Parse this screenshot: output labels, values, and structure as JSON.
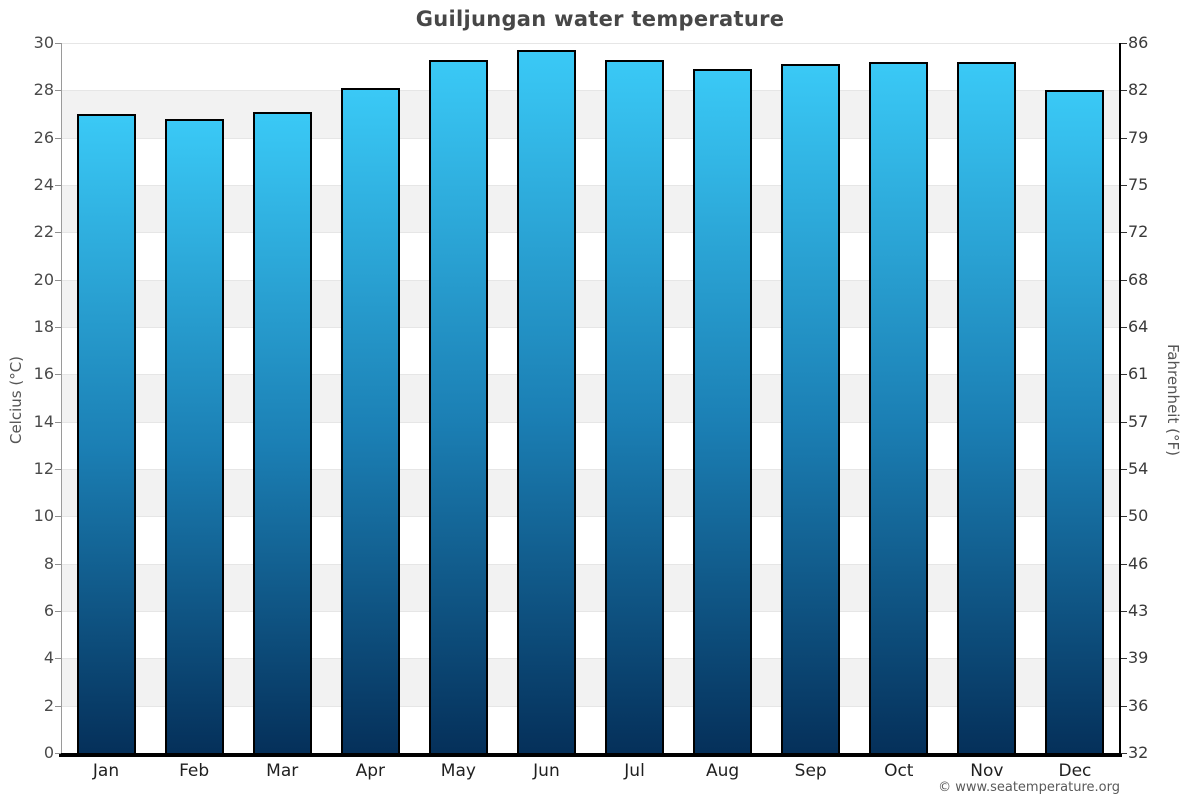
{
  "page": {
    "footer": "© www.seatemperature.org"
  },
  "chart_data": {
    "type": "bar",
    "title": "Guiljungan water temperature",
    "categories": [
      "Jan",
      "Feb",
      "Mar",
      "Apr",
      "May",
      "Jun",
      "Jul",
      "Aug",
      "Sep",
      "Oct",
      "Nov",
      "Dec"
    ],
    "values": [
      27.0,
      26.8,
      27.1,
      28.1,
      29.3,
      29.7,
      29.3,
      28.9,
      29.1,
      29.2,
      29.2,
      28.0
    ],
    "unit": "°C",
    "ylabel_left": "Celcius (°C)",
    "ylabel_right": "Fahrenheit (°F)",
    "ylim": [
      0,
      30
    ],
    "y_ticks_celsius": [
      "30",
      "28",
      "26",
      "24",
      "22",
      "20",
      "18",
      "16",
      "14",
      "12",
      "10",
      "8",
      "6",
      "4",
      "2",
      "0"
    ],
    "y_ticks_fahrenheit": [
      "86",
      "82",
      "79",
      "75",
      "72",
      "68",
      "64",
      "61",
      "57",
      "54",
      "50",
      "46",
      "43",
      "39",
      "36",
      "32"
    ],
    "grid": "horizontal-bands-every-2C",
    "legend": "none",
    "colors": {
      "bar_gradient_top": "#3ac9f6",
      "bar_gradient_mid": "#1b7fb4",
      "bar_gradient_bottom": "#05305a",
      "bar_border": "#000000",
      "band_white": "#ffffff",
      "band_gray": "#f2f2f2",
      "title_text": "#474747",
      "axis_text": "#4a4a4a"
    }
  }
}
